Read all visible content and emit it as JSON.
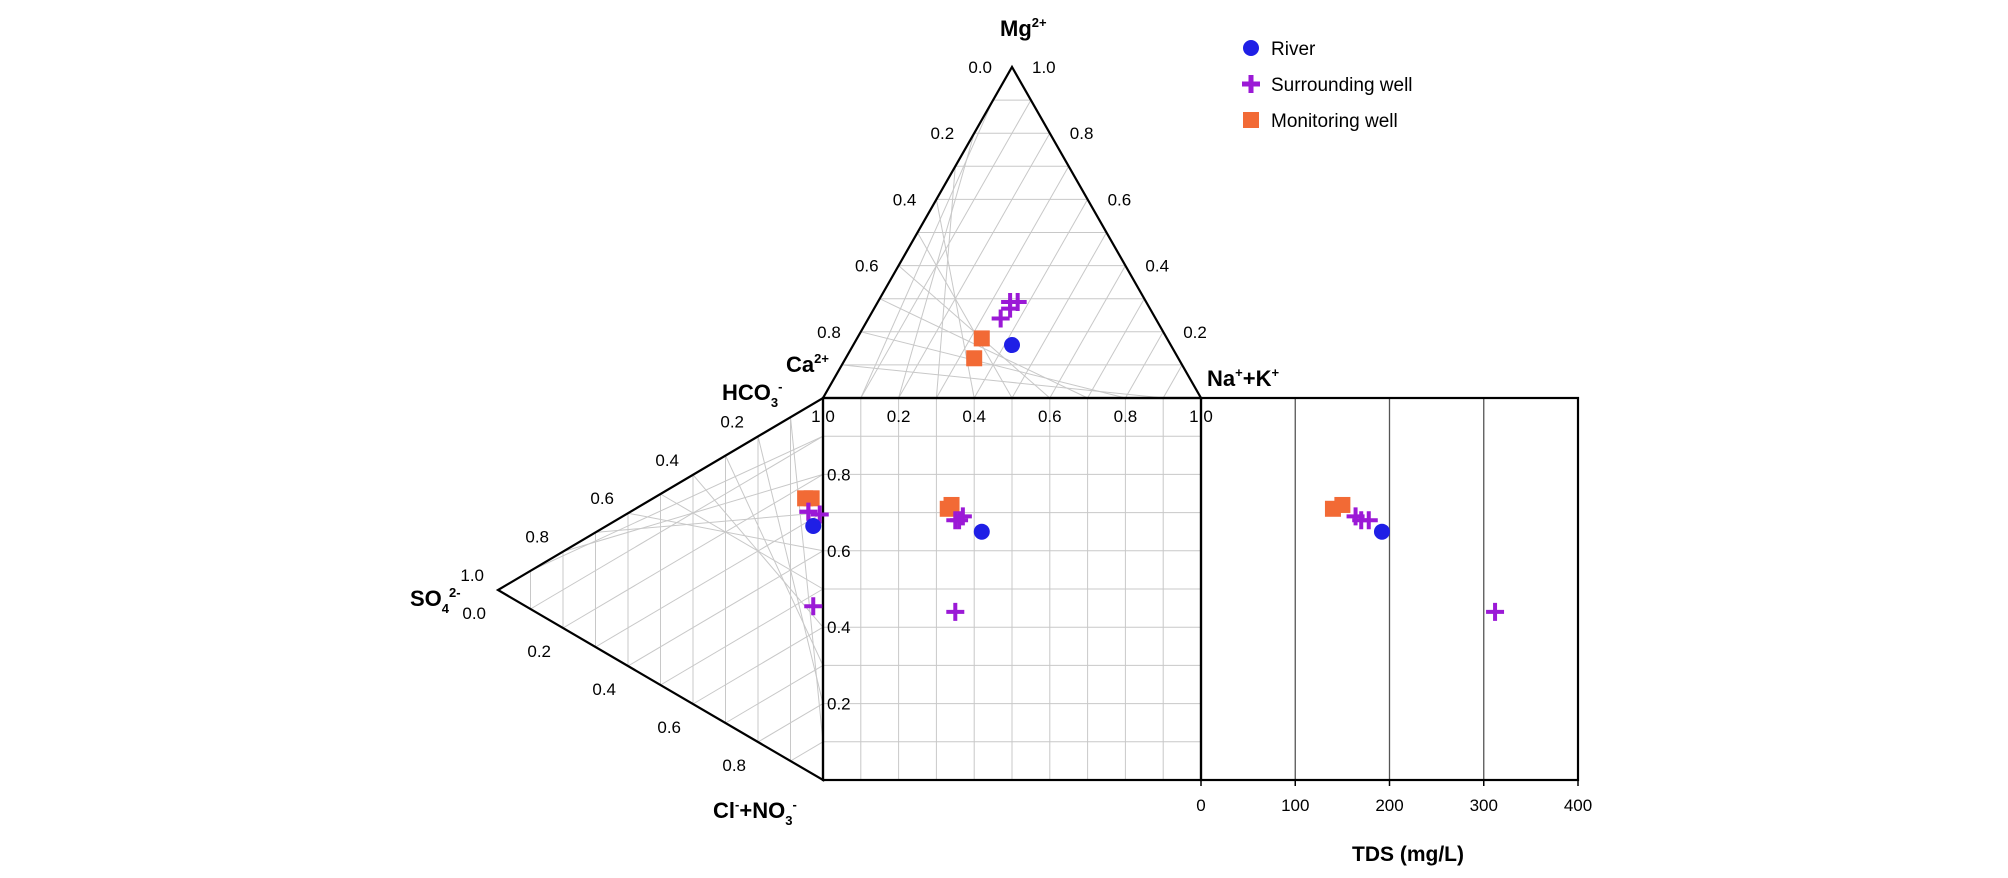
{
  "chart_data": {
    "type": "scatter",
    "subtype": "durov-diagram",
    "cation_triangle": {
      "vertices": {
        "top": "Mg",
        "left": "Ca",
        "right": "Na+K"
      },
      "left_edge_ticks": [
        "0.0",
        "0.2",
        "0.4",
        "0.6",
        "0.8"
      ],
      "right_edge_ticks": [
        "1.0",
        "0.8",
        "0.6",
        "0.4",
        "0.2"
      ]
    },
    "anion_triangle": {
      "vertices": {
        "top": "HCO3",
        "left": "SO4",
        "bottom": "Cl+NO3"
      },
      "upper_edge_ticks": [
        "0.2",
        "0.4",
        "0.6",
        "0.8",
        "1.0"
      ],
      "lower_edge_ticks": [
        "0.0",
        "0.2",
        "0.4",
        "0.6",
        "0.8"
      ]
    },
    "square": {
      "x_ticks": [
        "1.0",
        "0.2",
        "0.4",
        "0.6",
        "0.8",
        "1.0"
      ],
      "y_ticks": [
        "0.8",
        "0.6",
        "0.4",
        "0.2"
      ]
    },
    "tds_panel": {
      "xlabel": "TDS (mg/L)",
      "xlim": [
        0,
        400
      ],
      "x_ticks": [
        "0",
        "100",
        "200",
        "300",
        "400"
      ]
    },
    "ion_labels": {
      "mg": {
        "base": "Mg",
        "sup": "2+"
      },
      "ca": {
        "base": "Ca",
        "sup": "2+"
      },
      "na": {
        "base": "Na",
        "sup1": "+",
        "mid": "+K",
        "sup2": "+"
      },
      "hco3": {
        "base": "HCO",
        "sub": "3",
        "sup": "-"
      },
      "so4": {
        "base": "SO",
        "sub": "4",
        "sup": "2-"
      },
      "cl": {
        "base": "Cl",
        "sup": "-",
        "mid": "+NO",
        "sub": "3",
        "sup2": "-"
      }
    },
    "legend": [
      {
        "label": "River",
        "marker": "circle",
        "color": "#1f1fe6"
      },
      {
        "label": "Surrounding well",
        "marker": "plus",
        "color": "#9b19d6"
      },
      {
        "label": "Monitoring well",
        "marker": "square",
        "color": "#f26a35"
      }
    ],
    "series": [
      {
        "name": "River",
        "points": [
          {
            "na_k": 0.42,
            "mg": 0.16,
            "hco3": 0.65,
            "so4": 0.03,
            "tds": 192
          }
        ]
      },
      {
        "name": "Surrounding well",
        "points": [
          {
            "na_k": 0.35,
            "mg": 0.29,
            "hco3": 0.68,
            "so4": 0.045,
            "tds": 170
          },
          {
            "na_k": 0.36,
            "mg": 0.27,
            "hco3": 0.68,
            "so4": 0.045,
            "tds": 178
          },
          {
            "na_k": 0.37,
            "mg": 0.29,
            "hco3": 0.69,
            "so4": 0.01,
            "tds": 164
          },
          {
            "na_k": 0.35,
            "mg": 0.24,
            "hco3": 0.44,
            "so4": 0.03,
            "tds": 312
          }
        ]
      },
      {
        "name": "Monitoring well",
        "points": [
          {
            "na_k": 0.33,
            "mg": 0.18,
            "hco3": 0.71,
            "so4": 0.055,
            "tds": 140
          },
          {
            "na_k": 0.34,
            "mg": 0.12,
            "hco3": 0.72,
            "so4": 0.035,
            "tds": 150
          }
        ]
      }
    ]
  }
}
